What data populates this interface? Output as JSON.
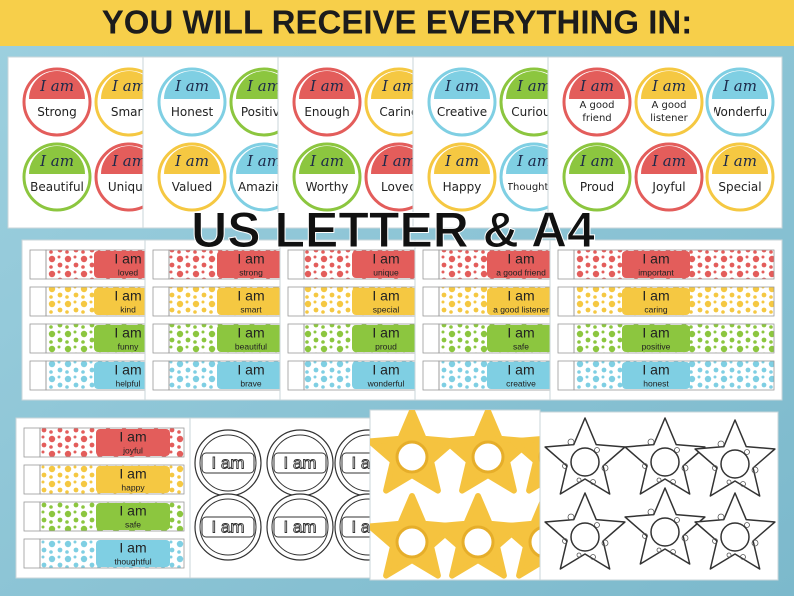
{
  "header": {
    "title": "YOU WILL RECEIVE EVERYTHING IN:"
  },
  "overlay": {
    "text": "US LETTER & A4"
  },
  "prefix": "I am",
  "badge_cards": [
    {
      "badges": [
        {
          "word": "Strong",
          "color": "#e35d5b"
        },
        {
          "word": "Smart",
          "color": "#f5c842"
        },
        {
          "word": "Beautiful",
          "color": "#8cc63f"
        },
        {
          "word": "Unique",
          "color": "#e35d5b"
        }
      ]
    },
    {
      "badges": [
        {
          "word": "Honest",
          "color": "#7fcfe3"
        },
        {
          "word": "Positive",
          "color": "#8cc63f"
        },
        {
          "word": "Valued",
          "color": "#f5c842"
        },
        {
          "word": "Amazing",
          "color": "#7fcfe3"
        }
      ]
    },
    {
      "badges": [
        {
          "word": "Enough",
          "color": "#e35d5b"
        },
        {
          "word": "Caring",
          "color": "#f5c842"
        },
        {
          "word": "Worthy",
          "color": "#8cc63f"
        },
        {
          "word": "Loved",
          "color": "#e35d5b"
        }
      ]
    },
    {
      "badges": [
        {
          "word": "Creative",
          "color": "#7fcfe3"
        },
        {
          "word": "Curious",
          "color": "#8cc63f"
        },
        {
          "word": "Happy",
          "color": "#f5c842"
        },
        {
          "word": "Thoughtful",
          "color": "#7fcfe3"
        }
      ]
    },
    {
      "badges": [
        {
          "word": "A good friend",
          "color": "#e35d5b"
        },
        {
          "word": "A good listener",
          "color": "#f5c842"
        },
        {
          "word": "Wonderful",
          "color": "#7fcfe3"
        },
        {
          "word": "Proud",
          "color": "#8cc63f"
        },
        {
          "word": "Joyful",
          "color": "#e35d5b"
        },
        {
          "word": "Special",
          "color": "#f5c842"
        }
      ]
    }
  ],
  "strip_colors": [
    "#e35d5b",
    "#f5c842",
    "#8cc63f",
    "#7fcfe3"
  ],
  "strip_cards": [
    {
      "words": [
        "loved",
        "kind",
        "funny",
        "helpful"
      ]
    },
    {
      "words": [
        "strong",
        "smart",
        "beautiful",
        "brave"
      ]
    },
    {
      "words": [
        "unique",
        "special",
        "proud",
        "wonderful"
      ]
    },
    {
      "words": [
        "a good friend",
        "a good listener",
        "safe",
        "creative"
      ]
    },
    {
      "words": [
        "important",
        "caring",
        "positive",
        "honest"
      ]
    },
    {
      "words": [
        "joyful",
        "happy",
        "safe",
        "thoughtful"
      ]
    }
  ]
}
